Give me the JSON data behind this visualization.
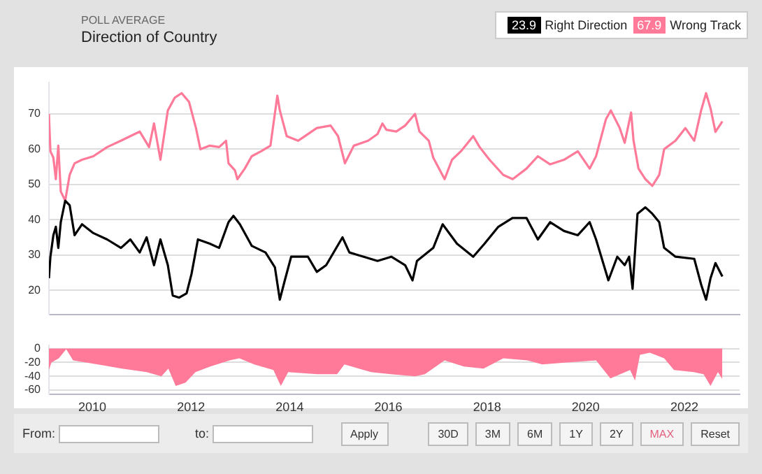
{
  "chart_data": [
    {
      "type": "line",
      "subtitle": "POLL AVERAGE",
      "title": "Direction of Country",
      "legend": "top right",
      "grid": "y",
      "tick_labels": "y",
      "marker": "none",
      "xlim": [
        2009.12,
        2023.12
      ],
      "xticks": [
        2010,
        2012,
        2014,
        2016,
        2018,
        2020,
        2022
      ],
      "ylim": [
        13,
        79
      ],
      "yticks": [
        20,
        30,
        40,
        50,
        60,
        70
      ],
      "annotations": [
        "23.9",
        "67.9"
      ],
      "series": [
        {
          "name": "Right Direction",
          "color": "#000000",
          "x": [
            2009.12,
            2009.15,
            2009.21,
            2009.26,
            2009.31,
            2009.36,
            2009.45,
            2009.54,
            2009.64,
            2009.79,
            2010.02,
            2010.3,
            2010.58,
            2010.77,
            2010.96,
            2011.1,
            2011.25,
            2011.38,
            2011.53,
            2011.63,
            2011.76,
            2011.91,
            2012.01,
            2012.14,
            2012.38,
            2012.57,
            2012.76,
            2012.86,
            2012.99,
            2013.23,
            2013.51,
            2013.7,
            2013.8,
            2013.89,
            2014.03,
            2014.37,
            2014.55,
            2014.74,
            2015.07,
            2015.21,
            2015.5,
            2015.78,
            2016.06,
            2016.34,
            2016.49,
            2016.58,
            2016.91,
            2017.1,
            2017.39,
            2017.72,
            2017.95,
            2018.23,
            2018.52,
            2018.8,
            2019.03,
            2019.28,
            2019.56,
            2019.84,
            2020.08,
            2020.21,
            2020.46,
            2020.64,
            2020.79,
            2020.88,
            2020.95,
            2021.05,
            2021.21,
            2021.35,
            2021.49,
            2021.59,
            2021.82,
            2022.2,
            2022.34,
            2022.44,
            2022.53,
            2022.63,
            2022.77
          ],
          "values": [
            23.4,
            29.5,
            35.6,
            38,
            32,
            39.3,
            45.4,
            44.1,
            35.6,
            38.7,
            36.2,
            34.4,
            32,
            34.4,
            30.7,
            35,
            27.1,
            34.4,
            27.1,
            18.5,
            17.9,
            19.1,
            24.6,
            34.4,
            33.2,
            32,
            39.3,
            41.1,
            38.7,
            32.6,
            30.7,
            26.5,
            17.3,
            22.2,
            29.5,
            29.5,
            25.2,
            27.1,
            35,
            30.7,
            29.5,
            28.3,
            29.5,
            27.1,
            22.8,
            28.3,
            32,
            38.7,
            33.2,
            29.5,
            33.2,
            38,
            40.5,
            40.5,
            34.4,
            39.3,
            36.8,
            35.6,
            39.3,
            34.4,
            22.8,
            29.5,
            27.1,
            29.5,
            20.4,
            41.7,
            43.5,
            41.7,
            39.3,
            32,
            29.5,
            28.9,
            21.6,
            17.3,
            23.4,
            27.7,
            23.9
          ]
        },
        {
          "name": "Wrong Track",
          "color": "#ff7a99",
          "x": [
            2009.12,
            2009.15,
            2009.21,
            2009.26,
            2009.31,
            2009.36,
            2009.45,
            2009.54,
            2009.64,
            2009.79,
            2010.02,
            2010.3,
            2010.58,
            2010.77,
            2010.96,
            2011.15,
            2011.25,
            2011.38,
            2011.53,
            2011.67,
            2011.81,
            2011.96,
            2012.1,
            2012.19,
            2012.38,
            2012.57,
            2012.71,
            2012.76,
            2012.89,
            2012.94,
            2013.09,
            2013.23,
            2013.42,
            2013.61,
            2013.75,
            2013.8,
            2013.94,
            2014.17,
            2014.55,
            2014.83,
            2014.98,
            2015.12,
            2015.3,
            2015.59,
            2015.78,
            2015.88,
            2015.96,
            2016.16,
            2016.34,
            2016.54,
            2016.63,
            2016.82,
            2016.91,
            2017.14,
            2017.29,
            2017.47,
            2017.72,
            2017.85,
            2018.05,
            2018.33,
            2018.52,
            2018.8,
            2019.03,
            2019.28,
            2019.56,
            2019.84,
            2020.08,
            2020.21,
            2020.41,
            2020.51,
            2020.69,
            2020.79,
            2020.92,
            2020.97,
            2021.07,
            2021.21,
            2021.35,
            2021.49,
            2021.59,
            2021.82,
            2022.02,
            2022.2,
            2022.34,
            2022.44,
            2022.53,
            2022.63,
            2022.77
          ],
          "values": [
            70,
            59.4,
            57.6,
            51.5,
            61,
            48,
            45.4,
            52.7,
            56,
            57,
            58,
            60.6,
            62.4,
            63.7,
            65,
            60.6,
            67.3,
            57,
            71,
            74.6,
            75.9,
            73.4,
            66,
            60,
            61,
            60.6,
            62.4,
            56,
            54,
            51.5,
            54.5,
            58,
            59.4,
            61,
            75.2,
            71,
            63.7,
            62.4,
            66,
            66.7,
            63.7,
            56,
            61,
            62.4,
            64.3,
            67.3,
            65.5,
            65,
            66.7,
            70,
            65,
            62.4,
            57.6,
            51.5,
            57,
            59.4,
            63.7,
            60.6,
            57,
            52.7,
            51.5,
            54.5,
            58,
            55.7,
            57,
            59.4,
            54.5,
            58,
            68.5,
            71,
            66,
            61.8,
            70.4,
            62.4,
            54.5,
            51.5,
            49.6,
            52.7,
            60,
            62.4,
            66,
            62.4,
            71,
            75.9,
            71.6,
            64.9,
            67.9
          ]
        }
      ]
    },
    {
      "type": "area",
      "grid": "y",
      "marker": "none",
      "xlim": [
        2009.12,
        2023.12
      ],
      "xticks": [
        2010,
        2012,
        2014,
        2016,
        2018,
        2020,
        2022
      ],
      "ylim": [
        -66,
        5
      ],
      "yticks": [
        -60,
        -40,
        -20,
        0
      ],
      "annotations": [
        "From:",
        "to:",
        "Apply",
        "30D",
        "3M",
        "6M",
        "1Y",
        "2Y",
        "MAX",
        "Reset"
      ],
      "series": [
        {
          "color": "#ff7a99",
          "x": [
            2009.12,
            2009.17,
            2009.32,
            2009.47,
            2009.61,
            2010.11,
            2010.6,
            2011.1,
            2011.4,
            2011.54,
            2011.69,
            2011.89,
            2012.09,
            2012.39,
            2012.78,
            2012.98,
            2013.28,
            2013.67,
            2013.82,
            2013.97,
            2014.56,
            2014.96,
            2015.11,
            2015.65,
            2016.05,
            2016.54,
            2016.74,
            2017.14,
            2017.53,
            2017.93,
            2018.33,
            2018.82,
            2019.12,
            2019.61,
            2020.21,
            2020.5,
            2020.9,
            2021.0,
            2021.1,
            2021.3,
            2021.59,
            2021.79,
            2022.19,
            2022.39,
            2022.53,
            2022.68,
            2022.77
          ],
          "values": [
            -31,
            -20,
            -14,
            -1,
            -17,
            -23,
            -29,
            -34,
            -40,
            -29,
            -54,
            -49,
            -34,
            -26,
            -17,
            -14,
            -23,
            -31,
            -54,
            -34,
            -37,
            -37,
            -23,
            -34,
            -37,
            -40,
            -37,
            -17,
            -26,
            -29,
            -14,
            -17,
            -23,
            -20,
            -17,
            -43,
            -31,
            -46,
            -9,
            -6,
            -14,
            -31,
            -34,
            -37,
            -54,
            -34,
            -44
          ]
        }
      ]
    }
  ]
}
